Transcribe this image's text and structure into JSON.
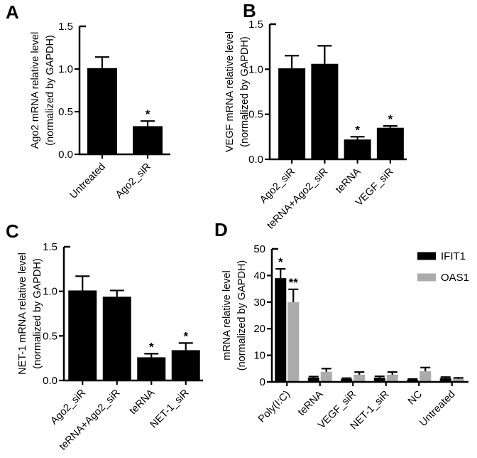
{
  "figure": {
    "background": "#ffffff",
    "colors": {
      "bar_primary": "#000000",
      "bar_secondary": "#ababab",
      "axis": "#000000",
      "text": "#000000"
    }
  },
  "chart_data": [
    {
      "panel_label": "A",
      "type": "bar",
      "title": "",
      "ylabel_line1": "Ago2 mRNA relative level",
      "ylabel_line2": "(normalized by GAPDH)",
      "categories": [
        "Untreated",
        "Ago2_siR"
      ],
      "values": [
        1.01,
        0.33
      ],
      "errors": [
        0.13,
        0.06
      ],
      "sig": [
        "",
        "*"
      ],
      "ylim": [
        0,
        1.5
      ],
      "ytick_labels": [
        "0.0",
        "0.5",
        "1.0",
        "1.5"
      ],
      "bar_color": "#000000",
      "grid": false,
      "legend": null
    },
    {
      "panel_label": "B",
      "type": "bar",
      "title": "",
      "ylabel_line1": "VEGF mRNA relative level",
      "ylabel_line2": "(normalized by GAPDH)",
      "categories": [
        "Ago2_siR",
        "teRNA+Ago2_siR",
        "teRNA",
        "VEGF_siR"
      ],
      "values": [
        1.01,
        1.06,
        0.22,
        0.35
      ],
      "errors": [
        0.14,
        0.2,
        0.03,
        0.02
      ],
      "sig": [
        "",
        "",
        "*",
        "*"
      ],
      "ylim": [
        0,
        1.5
      ],
      "ytick_labels": [
        "0.0",
        "0.5",
        "1.0",
        "1.5"
      ],
      "bar_color": "#000000",
      "grid": false,
      "legend": null
    },
    {
      "panel_label": "C",
      "type": "bar",
      "title": "",
      "ylabel_line1": "NET-1 mRNA relative level",
      "ylabel_line2": "(normalized by GAPDH)",
      "categories": [
        "Ago2_siR",
        "teRNA+Ago2_siR",
        "teRNA",
        "NET-1_siR"
      ],
      "values": [
        1.01,
        0.94,
        0.26,
        0.34
      ],
      "errors": [
        0.16,
        0.07,
        0.04,
        0.08
      ],
      "sig": [
        "",
        "",
        "*",
        "*"
      ],
      "ylim": [
        0,
        1.5
      ],
      "ytick_labels": [
        "0.0",
        "0.5",
        "1.0",
        "1.5"
      ],
      "bar_color": "#000000",
      "grid": false,
      "legend": null
    },
    {
      "panel_label": "D",
      "type": "bar",
      "title": "",
      "ylabel_line1": "mRNA relative level",
      "ylabel_line2": "(normalized by GAPDH)",
      "categories": [
        "Poly(I:C)",
        "teRNA",
        "VEGF_siR",
        "NET-1_siR",
        "NC",
        "Untreated"
      ],
      "series": [
        {
          "name": "IFIT1",
          "color": "#000000",
          "values": [
            39,
            1.6,
            1.1,
            1.6,
            0.8,
            1.4
          ],
          "errors": [
            3.5,
            0.4,
            0.3,
            0.5,
            0.3,
            0.4
          ],
          "sig": [
            "*",
            "",
            "",
            "",
            "",
            ""
          ]
        },
        {
          "name": "OAS1",
          "color": "#ababab",
          "values": [
            30,
            3.8,
            2.7,
            2.7,
            4.0,
            1.1
          ],
          "errors": [
            4.8,
            1.2,
            1.0,
            1.0,
            1.4,
            0.4
          ],
          "sig": [
            "**",
            "",
            "",
            "",
            "",
            ""
          ]
        }
      ],
      "ylim": [
        0,
        50
      ],
      "ytick_labels": [
        "0",
        "10",
        "20",
        "30",
        "40",
        "50"
      ],
      "grid": false,
      "legend": {
        "position": "top-right",
        "entries": [
          {
            "label": "IFIT1",
            "color": "#000000"
          },
          {
            "label": "OAS1",
            "color": "#ababab"
          }
        ]
      }
    }
  ]
}
